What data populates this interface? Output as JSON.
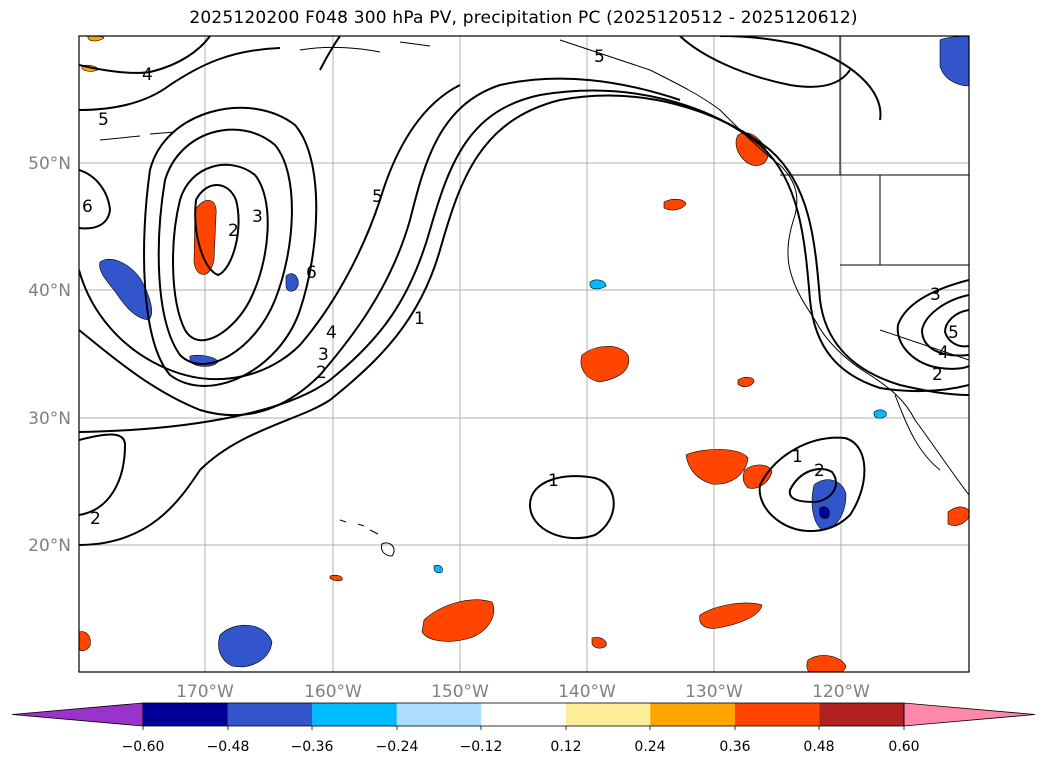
{
  "title": "2025120200 F048 300 hPa PV, precipitation PC (2025120512 - 2025120612)",
  "map": {
    "lat_labels": [
      "50°N",
      "40°N",
      "30°N",
      "20°N"
    ],
    "lon_labels": [
      "170°W",
      "160°W",
      "150°W",
      "140°W",
      "130°W",
      "120°W"
    ]
  },
  "pv_contour_labels": [
    "4",
    "5",
    "6",
    "2",
    "3",
    "5",
    "6",
    "4",
    "3",
    "2",
    "1",
    "5",
    "1",
    "2",
    "2",
    "1",
    "3",
    "4",
    "5",
    "2"
  ],
  "colorbar": {
    "tick_labels": [
      "−0.60",
      "−0.48",
      "−0.36",
      "−0.24",
      "−0.12",
      "0.12",
      "0.24",
      "0.36",
      "0.48",
      "0.60"
    ],
    "colors": [
      "#9933cc",
      "#000099",
      "#3355cc",
      "#00bbff",
      "#aaddff",
      "#ffffff",
      "#ffee99",
      "#ffa500",
      "#ff4500",
      "#b22222",
      "#ff88aa"
    ]
  }
}
